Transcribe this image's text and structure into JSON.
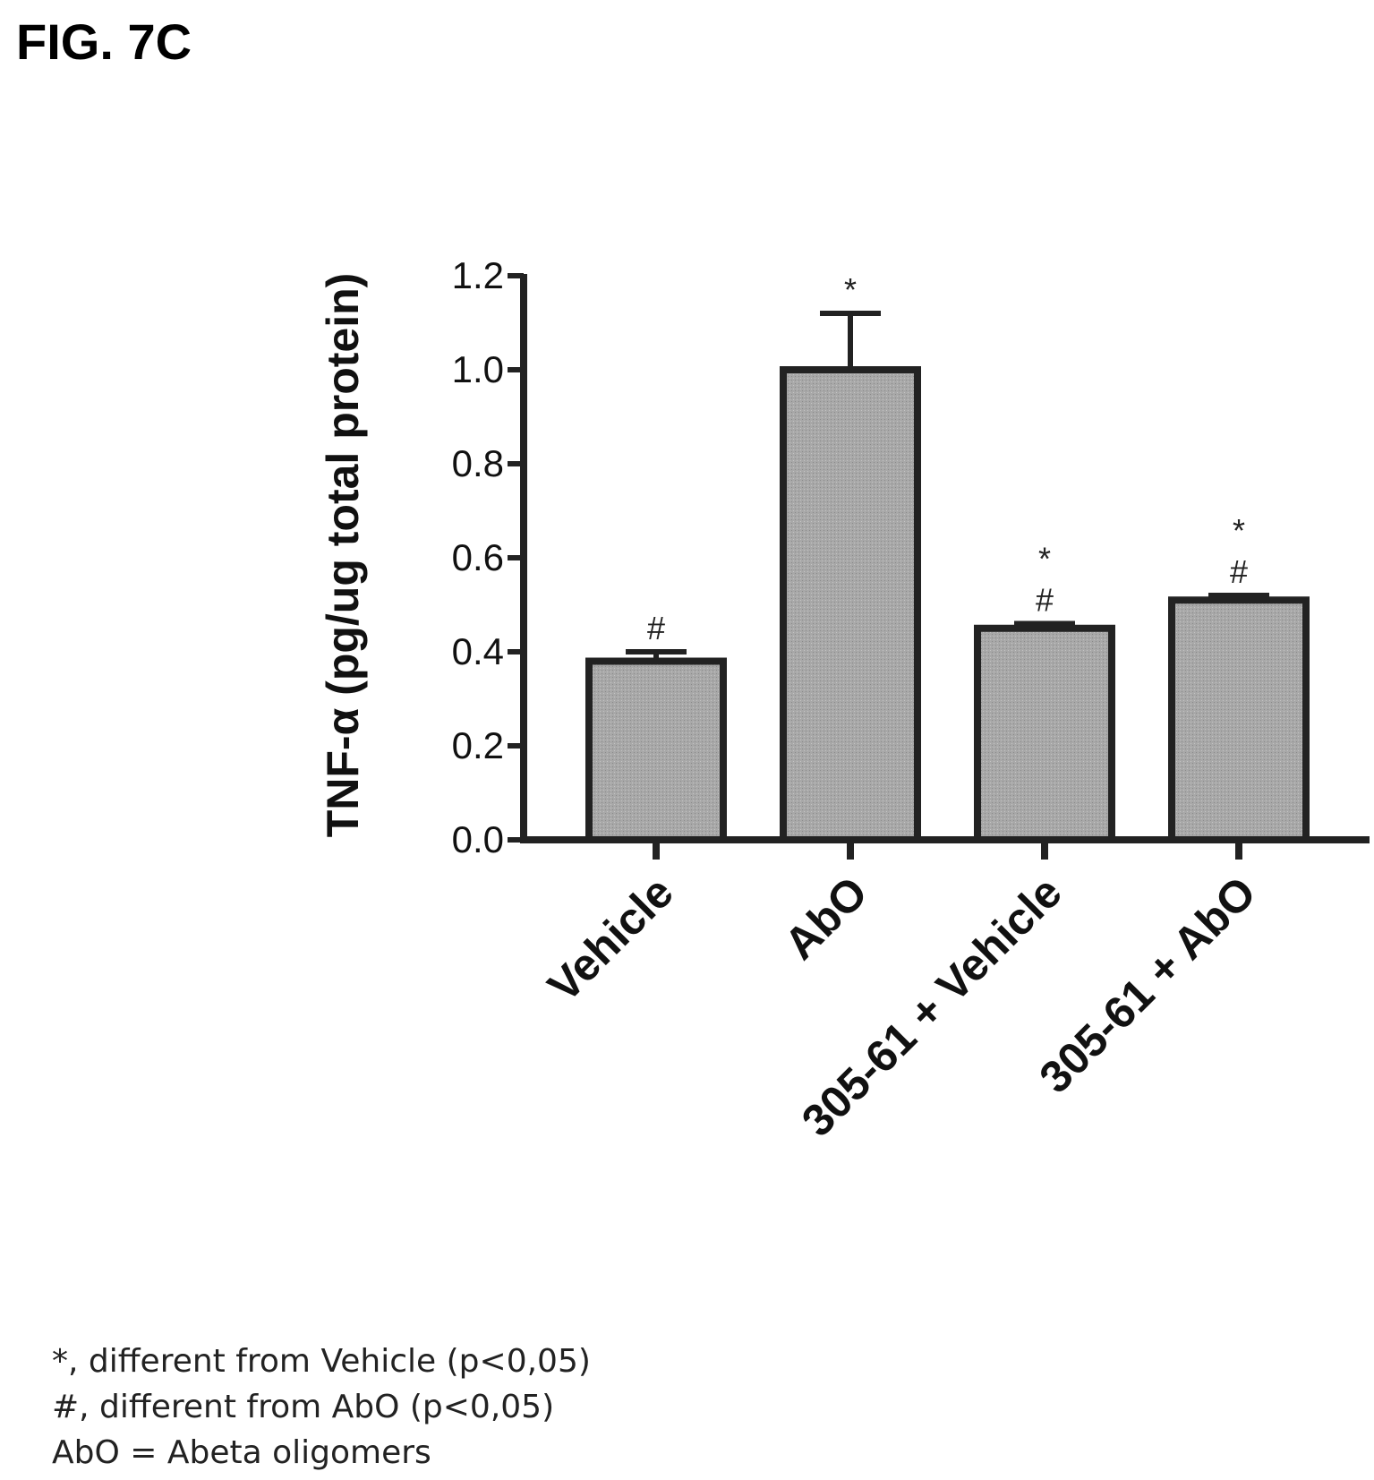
{
  "figure_title": "FIG. 7C",
  "chart_data": {
    "type": "bar",
    "title": "",
    "xlabel": "",
    "ylabel": "TNF-α (pg/ug total protein)",
    "categories": [
      "Vehicle",
      "AbO",
      "305-61 + Vehicle",
      "305-61 + AbO"
    ],
    "values": [
      0.38,
      1.0,
      0.45,
      0.51
    ],
    "error_upper": [
      0.02,
      0.12,
      0.01,
      0.01
    ],
    "significance": [
      [
        "#"
      ],
      [
        "*"
      ],
      [
        "*",
        "#"
      ],
      [
        "*",
        "#"
      ]
    ],
    "ylim": [
      0,
      1.2
    ],
    "yticks": [
      "0.0",
      "0.2",
      "0.4",
      "0.6",
      "0.8",
      "1.0",
      "1.2"
    ],
    "bar_color": "#a8a8a8",
    "grid": false,
    "legend": "none"
  },
  "footnotes": [
    "*, different from Vehicle (p<0,05)",
    "#, different from AbO (p<0,05)",
    "AbO = Abeta oligomers"
  ]
}
